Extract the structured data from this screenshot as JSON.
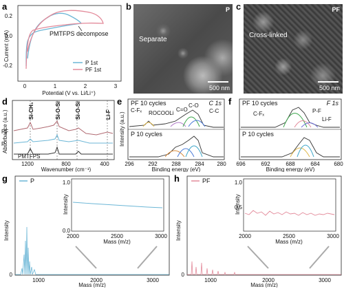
{
  "panels": {
    "a": {
      "letter": "a",
      "ylabel": "Current (mA)",
      "xlabel": "Potential (V vs. Li/Li⁺)",
      "yticks": [
        "0.2",
        "0.0",
        "-0.2"
      ],
      "xticks": [
        "0",
        "1",
        "2",
        "3"
      ],
      "annotation": "PMTFPS decompose",
      "legend": [
        {
          "name": "P 1st",
          "color": "#6bb6d6"
        },
        {
          "name": "PF 1st",
          "color": "#e38a9a"
        }
      ]
    },
    "b": {
      "letter": "b",
      "corner": "P",
      "caption": "Separate",
      "scalebar": "500 nm"
    },
    "c": {
      "letter": "c",
      "corner": "PF",
      "caption": "Cross-linked",
      "scalebar": "500 nm"
    },
    "d": {
      "letter": "d",
      "ylabel": "Absorbance (a.u.)",
      "xlabel": "Wavenumber (cm⁻¹)",
      "xticks": [
        "1200",
        "800",
        "400"
      ],
      "peaks": [
        "Si-CH₃",
        "Si-O-Si",
        "Si-O-Si",
        "Li-F"
      ],
      "traces": [
        "PF",
        "P",
        "PMTFPS"
      ]
    },
    "e": {
      "letter": "e",
      "corner": "C 1s",
      "ylabel": "Intensity (a.u.)",
      "xlabel": "Binding energy (eV)",
      "xticks": [
        "296",
        "292",
        "288",
        "284",
        "280"
      ],
      "top_label": "PF 10 cycles",
      "bottom_label": "P 10 cycles",
      "peaks": [
        "C-Fₓ",
        "ROCOOLi",
        "C=O",
        "C-O",
        "C-C"
      ]
    },
    "f": {
      "letter": "f",
      "corner": "F 1s",
      "xlabel": "Binding energy (eV)",
      "xticks": [
        "696",
        "692",
        "688",
        "684",
        "680"
      ],
      "top_label": "PF 10 cycles",
      "bottom_label": "P 10 cycles",
      "peaks": [
        "C-Fₓ",
        "P-F",
        "Li-F"
      ]
    },
    "g": {
      "letter": "g",
      "legend": "P",
      "ylabel": "Intensity",
      "xlabel": "Mass (m/z)",
      "xticks": [
        "1000",
        "2000",
        "3000"
      ],
      "yticks": [
        "0"
      ],
      "inset": {
        "ylabel": "Intensity",
        "xlabel": "Mass (m/z)",
        "xticks": [
          "2000",
          "2500",
          "3000"
        ],
        "yticks": [
          "0.0",
          "1.0"
        ]
      }
    },
    "h": {
      "letter": "h",
      "legend": "PF",
      "ylabel": "Intensity",
      "xlabel": "Mass (m/z)",
      "xticks": [
        "1000",
        "2000",
        "3000"
      ],
      "yticks": [
        "0"
      ],
      "inset": {
        "ylabel": "Intensity",
        "xlabel": "Mass (m/z)",
        "xticks": [
          "2000",
          "2500",
          "3000"
        ],
        "yticks": [
          "0.5",
          "1.0"
        ]
      }
    }
  }
}
